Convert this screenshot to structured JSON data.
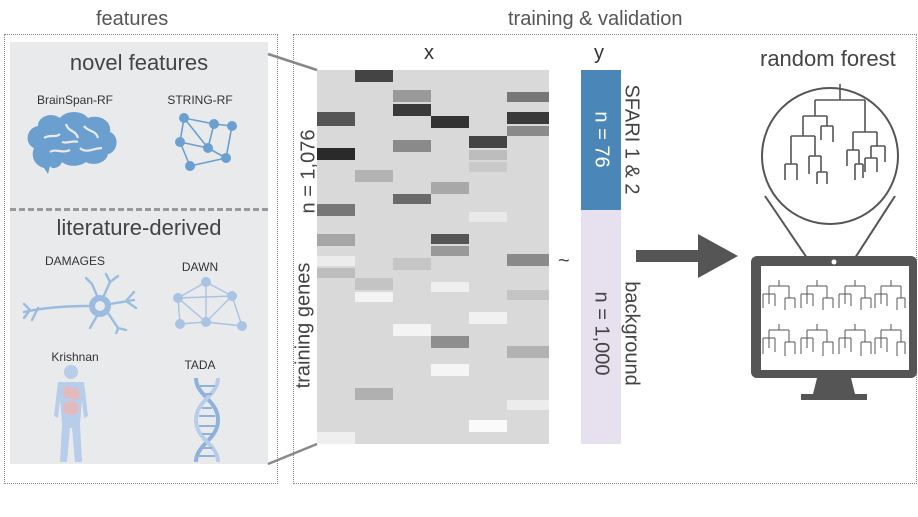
{
  "sections": {
    "features": "features",
    "training": "training & validation"
  },
  "novel": {
    "title": "novel features",
    "items": [
      "BrainSpan-RF",
      "STRING-RF"
    ]
  },
  "literature": {
    "title": "literature-derived",
    "items": [
      "DAMAGES",
      "DAWN",
      "Krishnan",
      "TADA"
    ]
  },
  "matrix": {
    "x_label": "x",
    "y_label": "y",
    "row_label": "training  genes",
    "n_label": "n = 1,076",
    "tilde": "~"
  },
  "labels_y": {
    "sfari_title": "SFARI 1 & 2",
    "sfari_n": "n = 76",
    "bg_title": "background",
    "bg_n": "n = 1,000"
  },
  "model": {
    "title": "random forest"
  },
  "colors": {
    "panel_bg": "#e9eaec",
    "sfari": "#4a86b8",
    "background": "#e6e0ef",
    "icon_blue": "#6b9fd0",
    "dark": "#555555"
  }
}
